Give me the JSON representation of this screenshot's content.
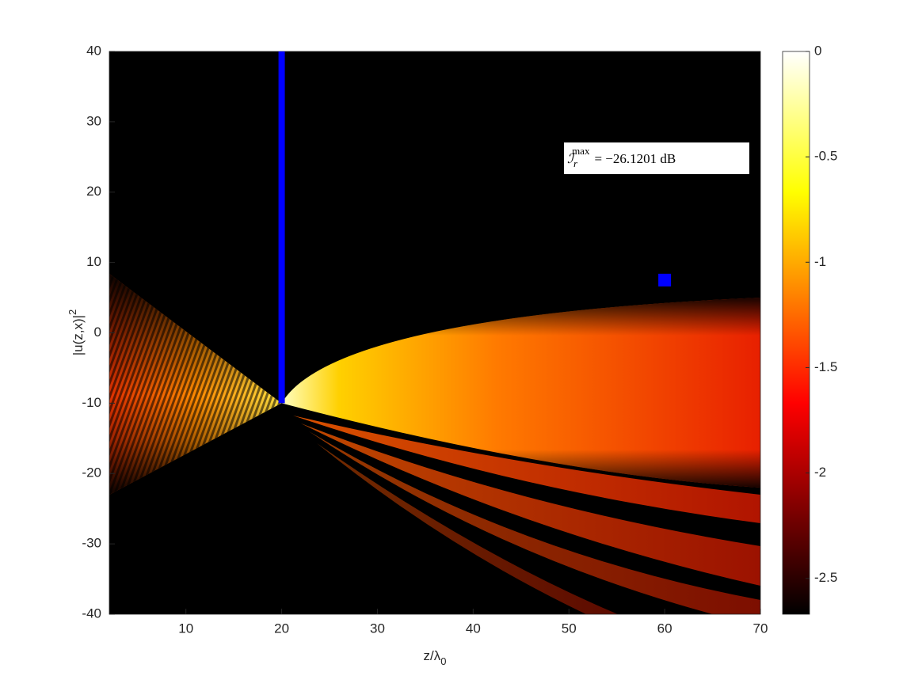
{
  "chart_data": {
    "type": "heatmap",
    "xlabel": "z/λ",
    "xlabel_sub": "0",
    "ylabel": "|u(z,x)|",
    "ylabel_sup": "2",
    "xlim": [
      2,
      70
    ],
    "xticks": [
      10,
      20,
      30,
      40,
      50,
      60,
      70
    ],
    "ylim": [
      -40,
      40
    ],
    "yticks": [
      -40,
      -30,
      -20,
      -10,
      0,
      10,
      20,
      30,
      40
    ],
    "colormap": "hot",
    "clim": [
      -2.67,
      0
    ],
    "cticks": [
      -2.5,
      -2,
      -1.5,
      -1,
      -0.5,
      0
    ],
    "wall": {
      "x": [
        20,
        20
      ],
      "y": [
        -10,
        40
      ],
      "color": "#0000ff"
    },
    "marker": {
      "x": 60,
      "y": 7.5,
      "color": "#0000ff"
    },
    "annotation": {
      "symbol": "ℐ",
      "sub": "r",
      "sup": "max",
      "text": "= −26.1201 dB"
    }
  }
}
